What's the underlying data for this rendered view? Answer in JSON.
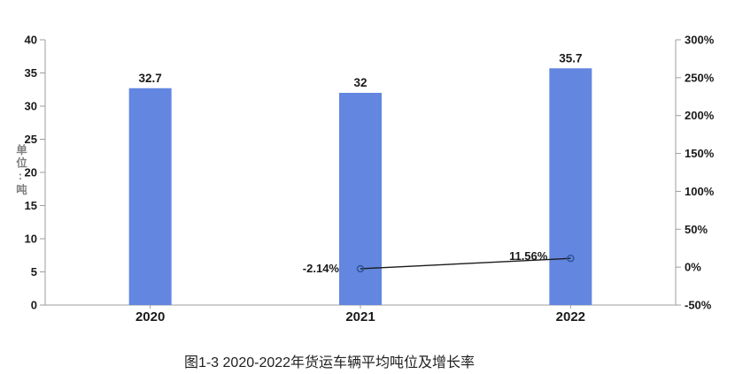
{
  "caption": "图1-3 2020-2022年货运车辆平均吨位及增长率",
  "chart_data": {
    "type": "bar+line combo",
    "title": "",
    "categories": [
      "2020",
      "2021",
      "2022"
    ],
    "series": [
      {
        "role": "bars",
        "axis": "left",
        "values": [
          32.7,
          32,
          35.7
        ],
        "data_labels": [
          "32.7",
          "32",
          "35.7"
        ],
        "color": "#6386E0"
      },
      {
        "role": "line",
        "axis": "right",
        "values": [
          null,
          -2.14,
          11.56
        ],
        "data_labels": [
          null,
          "-2.14%",
          "11.56%"
        ],
        "color": "#1a1a1a",
        "marker_color": "#2F5597"
      }
    ],
    "left_axis": {
      "label": "单位:吨",
      "min": 0,
      "max": 40,
      "step": 5,
      "tick_labels": [
        "0",
        "5",
        "10",
        "15",
        "20",
        "25",
        "30",
        "35",
        "40"
      ]
    },
    "right_axis": {
      "min": -50,
      "max": 300,
      "step": 50,
      "tick_labels": [
        "-50%",
        "0%",
        "50%",
        "100%",
        "150%",
        "200%",
        "250%",
        "300%"
      ]
    },
    "grid": false,
    "legend": "none",
    "axis_color": "#9e9e9e",
    "text_color": "#1a1a1a"
  }
}
